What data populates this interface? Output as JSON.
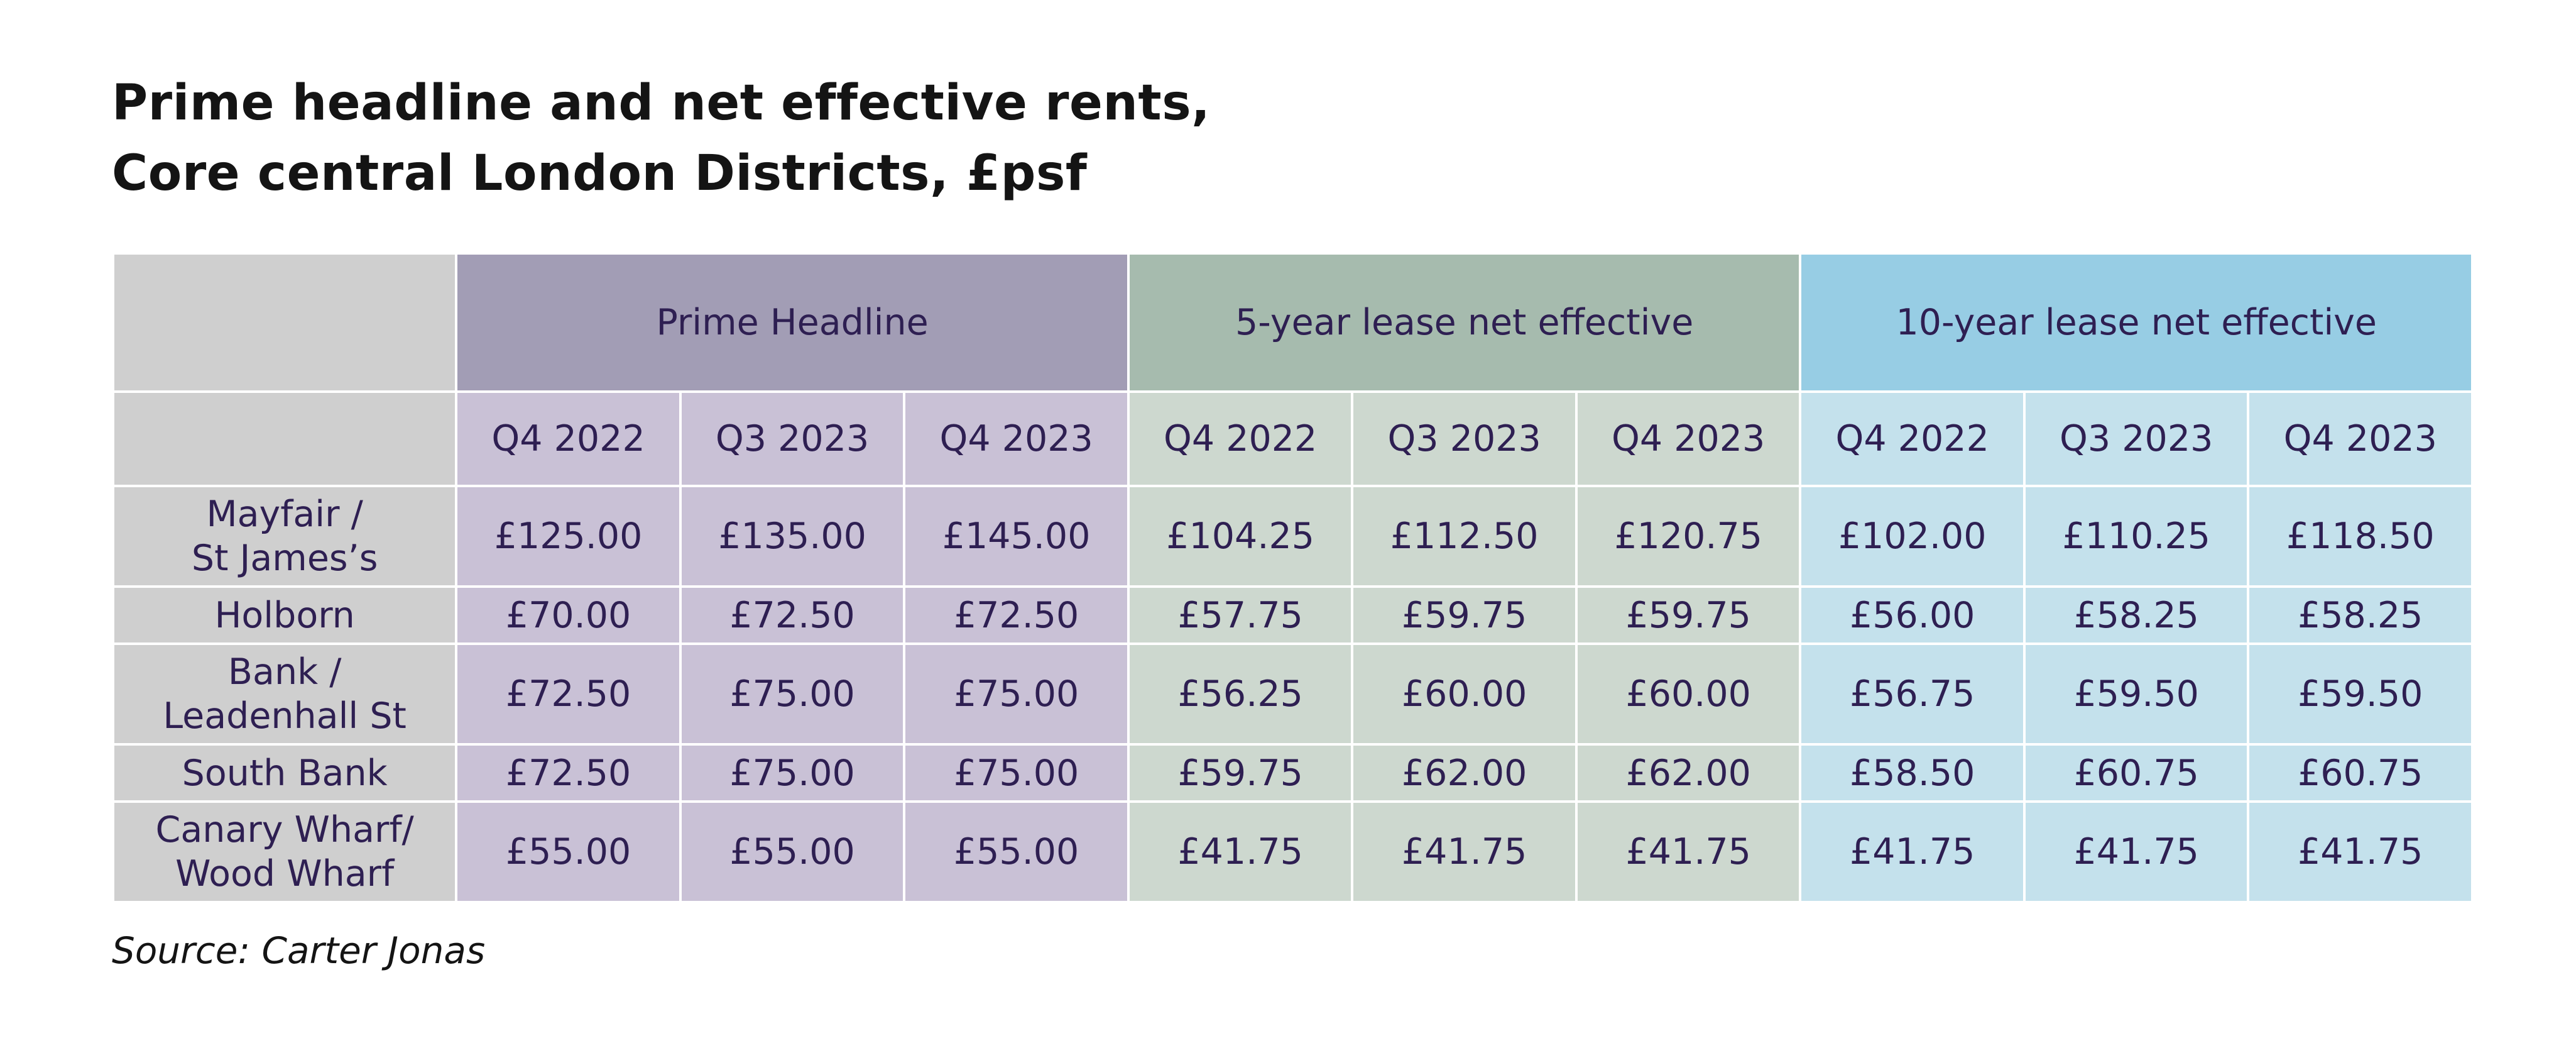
{
  "chart_data": {
    "type": "table",
    "title": "Prime headline and net effective rents,",
    "subtitle": "Core central London Districts, £psf",
    "column_groups": [
      {
        "name": "Prime Headline",
        "color": "#a29db5",
        "cell_color": "#c9c1d6"
      },
      {
        "name": "5-year lease net effective",
        "color": "#a6bbae",
        "cell_color": "#cdd8cf"
      },
      {
        "name": "10-year lease net effective",
        "color": "#97cde4",
        "cell_color": "#c4e1ec"
      }
    ],
    "quarters": [
      "Q4 2022",
      "Q3 2023",
      "Q4 2023"
    ],
    "rows": [
      {
        "label": [
          "Mayfair /",
          "St James’s"
        ],
        "values": [
          [
            "£125.00",
            "£135.00",
            "£145.00"
          ],
          [
            "£104.25",
            "£112.50",
            "£120.75"
          ],
          [
            "£102.00",
            "£110.25",
            "£118.50"
          ]
        ]
      },
      {
        "label": [
          "Holborn"
        ],
        "values": [
          [
            "£70.00",
            "£72.50",
            "£72.50"
          ],
          [
            "£57.75",
            "£59.75",
            "£59.75"
          ],
          [
            "£56.00",
            "£58.25",
            "£58.25"
          ]
        ]
      },
      {
        "label": [
          "Bank /",
          "Leadenhall St"
        ],
        "values": [
          [
            "£72.50",
            "£75.00",
            "£75.00"
          ],
          [
            "£56.25",
            "£60.00",
            "£60.00"
          ],
          [
            "£56.75",
            "£59.50",
            "£59.50"
          ]
        ]
      },
      {
        "label": [
          "South Bank"
        ],
        "values": [
          [
            "£72.50",
            "£75.00",
            "£75.00"
          ],
          [
            "£59.75",
            "£62.00",
            "£62.00"
          ],
          [
            "£58.50",
            "£60.75",
            "£60.75"
          ]
        ]
      },
      {
        "label": [
          "Canary Wharf/",
          "Wood Wharf"
        ],
        "values": [
          [
            "£55.00",
            "£55.00",
            "£55.00"
          ],
          [
            "£41.75",
            "£41.75",
            "£41.75"
          ],
          [
            "£41.75",
            "£41.75",
            "£41.75"
          ]
        ]
      }
    ],
    "source": "Source: Carter Jonas",
    "stub_color": "#cfcfcf"
  }
}
